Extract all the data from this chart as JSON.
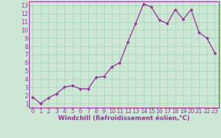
{
  "x": [
    0,
    1,
    2,
    3,
    4,
    5,
    6,
    7,
    8,
    9,
    10,
    11,
    12,
    13,
    14,
    15,
    16,
    17,
    18,
    19,
    20,
    21,
    22,
    23
  ],
  "y": [
    1.8,
    1.0,
    1.7,
    2.2,
    3.0,
    3.2,
    2.8,
    2.8,
    4.2,
    4.3,
    5.5,
    6.0,
    8.5,
    10.8,
    13.2,
    12.8,
    11.2,
    10.8,
    12.5,
    11.3,
    12.5,
    9.7,
    9.0,
    7.2
  ],
  "line_color": "#993399",
  "marker": "D",
  "marker_size": 2.0,
  "line_width": 1.0,
  "bg_color": "#cce8d4",
  "grid_color": "#aad4bb",
  "xlabel": "Windchill (Refroidissement éolien,°C)",
  "xlabel_color": "#993399",
  "xlabel_fontsize": 6.5,
  "tick_fontsize": 6.0,
  "xlim": [
    -0.5,
    23.5
  ],
  "ylim": [
    0.5,
    13.5
  ],
  "yticks": [
    1,
    2,
    3,
    4,
    5,
    6,
    7,
    8,
    9,
    10,
    11,
    12,
    13
  ],
  "xticks": [
    0,
    1,
    2,
    3,
    4,
    5,
    6,
    7,
    8,
    9,
    10,
    11,
    12,
    13,
    14,
    15,
    16,
    17,
    18,
    19,
    20,
    21,
    22,
    23
  ],
  "spine_color": "#993399"
}
